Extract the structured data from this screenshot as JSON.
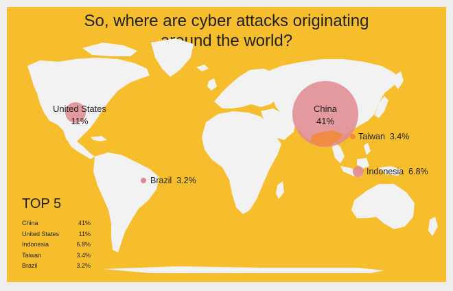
{
  "title": {
    "line1": "So, where are cyber attacks originating",
    "line2": "around the world?"
  },
  "colors": {
    "background": "#f6be2c",
    "land": "#f2f2f2",
    "bubble": "#e0898e",
    "overlap": "#ef8a3a",
    "text": "#1f1f1f"
  },
  "bubbles": [
    {
      "country": "China",
      "label": "China",
      "value": "41%",
      "share": 41
    },
    {
      "country": "United States",
      "label": "United States",
      "value": "11%",
      "share": 11
    },
    {
      "country": "Taiwan",
      "label": "Taiwan",
      "value": "3.4%",
      "share": 3.4
    },
    {
      "country": "Indonesia",
      "label": "Indonesia",
      "value": "6.8%",
      "share": 6.8
    },
    {
      "country": "Brazil",
      "label": "Brazil",
      "value": "3.2%",
      "share": 3.2
    }
  ],
  "top5": {
    "title": "TOP 5",
    "rows": [
      {
        "country": "China",
        "value": "41%"
      },
      {
        "country": "United States",
        "value": "11%"
      },
      {
        "country": "Indonesia",
        "value": "6.8%"
      },
      {
        "country": "Taiwan",
        "value": "3.4%"
      },
      {
        "country": "Brazil",
        "value": "3.2%"
      }
    ]
  }
}
